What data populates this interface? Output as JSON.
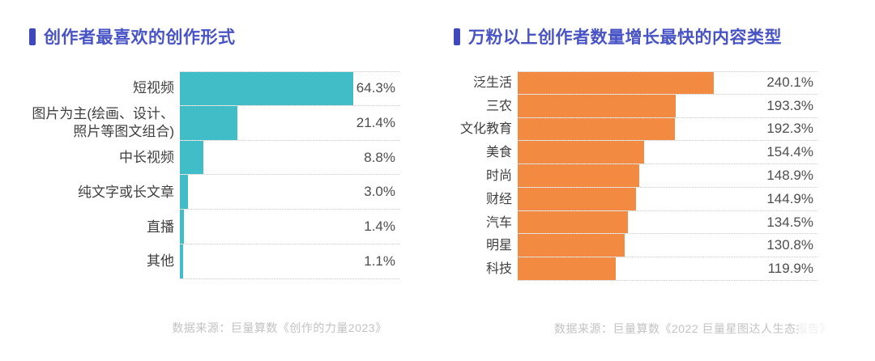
{
  "page": {
    "background": "#ffffff",
    "accent_color": "#4853c5"
  },
  "chart_data": [
    {
      "type": "bar",
      "orientation": "horizontal",
      "title": "创作者最喜欢的创作形式",
      "categories": [
        "短视频",
        "图片为主(绘画、设计、\n照片等图文组合)",
        "中长视频",
        "纯文字或长文章",
        "直播",
        "其他"
      ],
      "values": [
        64.3,
        21.4,
        8.8,
        3.0,
        1.4,
        1.1
      ],
      "value_labels": [
        "64.3%",
        "21.4%",
        "8.8%",
        "3.0%",
        "1.4%",
        "1.1%"
      ],
      "unit": "%",
      "bar_color": "#41bdc7",
      "scale_max": 81.5,
      "grid": false,
      "legend": "none",
      "source": "数据来源：巨量算数《创作的力量2023》"
    },
    {
      "type": "bar",
      "orientation": "horizontal",
      "title": "万粉以上创作者数量增长最快的内容类型",
      "categories": [
        "泛生活",
        "三农",
        "文化教育",
        "美食",
        "时尚",
        "财经",
        "汽车",
        "明星",
        "科技"
      ],
      "values": [
        240.1,
        193.3,
        192.3,
        154.4,
        148.9,
        144.9,
        134.5,
        130.8,
        119.9
      ],
      "value_labels": [
        "240.1%",
        "193.3%",
        "192.3%",
        "154.4%",
        "148.9%",
        "144.9%",
        "134.5%",
        "130.8%",
        "119.9%"
      ],
      "unit": "%",
      "bar_color": "#f28a42",
      "scale_max": 366.5,
      "grid": false,
      "legend": "none",
      "source": "数据来源：巨量算数《2022 巨量星图达人生态报告》"
    }
  ]
}
